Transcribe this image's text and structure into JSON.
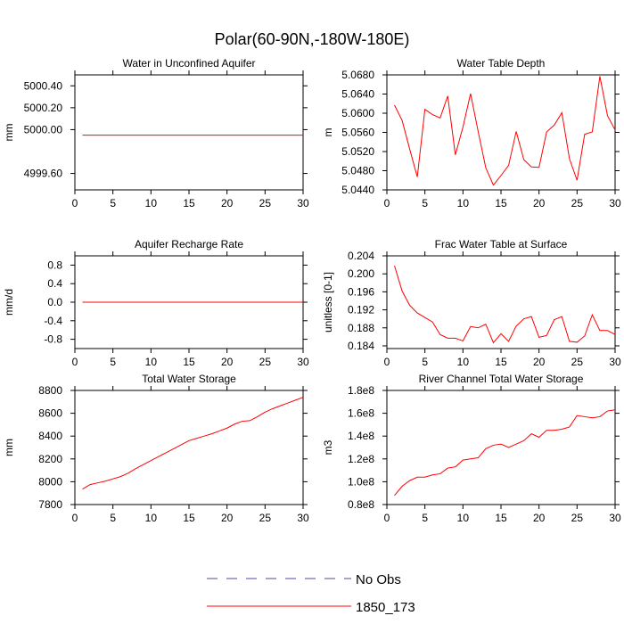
{
  "title": "Polar(60-90N,-180W-180E)",
  "chart_data": [
    {
      "type": "line",
      "title": "Water in Unconfined Aquifer",
      "ylabel": "mm",
      "xlim": [
        0,
        30
      ],
      "ylim": [
        4999.45,
        5000.5
      ],
      "xticks": [
        0,
        5,
        10,
        15,
        20,
        25,
        30
      ],
      "xtick_labels": [
        "0",
        "5",
        "10",
        "15",
        "20",
        "25",
        "30"
      ],
      "yticks": [
        4999.6,
        5000.0,
        5000.2,
        5000.4
      ],
      "ytick_labels": [
        "4999.60",
        "5000.00",
        "5000.20",
        "5000.40"
      ],
      "x": [
        1,
        2,
        3,
        4,
        5,
        6,
        7,
        8,
        9,
        10,
        11,
        12,
        13,
        14,
        15,
        16,
        17,
        18,
        19,
        20,
        21,
        22,
        23,
        24,
        25,
        26,
        27,
        28,
        29,
        30
      ],
      "series": [
        {
          "name": "1850_173",
          "color": "#ff0000",
          "values": [
            4999.95,
            4999.95,
            4999.95,
            4999.95,
            4999.95,
            4999.95,
            4999.95,
            4999.95,
            4999.95,
            4999.95,
            4999.95,
            4999.95,
            4999.95,
            4999.95,
            4999.95,
            4999.95,
            4999.95,
            4999.95,
            4999.95,
            4999.95,
            4999.95,
            4999.95,
            4999.95,
            4999.95,
            4999.95,
            4999.95,
            4999.95,
            4999.95,
            4999.95,
            4999.95
          ]
        }
      ]
    },
    {
      "type": "line",
      "title": "Water Table Depth",
      "ylabel": "m",
      "xlim": [
        0,
        30
      ],
      "ylim": [
        5.044,
        5.068
      ],
      "xticks": [
        0,
        5,
        10,
        15,
        20,
        25,
        30
      ],
      "xtick_labels": [
        "0",
        "5",
        "10",
        "15",
        "20",
        "25",
        "30"
      ],
      "yticks": [
        5.044,
        5.048,
        5.052,
        5.056,
        5.06,
        5.064,
        5.068
      ],
      "ytick_labels": [
        "5.0440",
        "5.0480",
        "5.0520",
        "5.0560",
        "5.0600",
        "5.0640",
        "5.0680"
      ],
      "x": [
        1,
        2,
        3,
        4,
        5,
        6,
        7,
        8,
        9,
        10,
        11,
        12,
        13,
        14,
        15,
        16,
        17,
        18,
        19,
        20,
        21,
        22,
        23,
        24,
        25,
        26,
        27,
        28,
        29,
        30
      ],
      "series": [
        {
          "name": "1850_173",
          "color": "#ff0000",
          "values": [
            5.0617,
            5.0585,
            5.0525,
            5.0467,
            5.0608,
            5.0597,
            5.059,
            5.0636,
            5.0513,
            5.0571,
            5.0641,
            5.0562,
            5.0486,
            5.045,
            5.047,
            5.0491,
            5.0562,
            5.0503,
            5.0488,
            5.0487,
            5.0561,
            5.0575,
            5.0601,
            5.0505,
            5.046,
            5.0556,
            5.0561,
            5.0677,
            5.0595,
            5.0565
          ]
        }
      ]
    },
    {
      "type": "line",
      "title": "Aquifer Recharge Rate",
      "ylabel": "mm/d",
      "xlim": [
        0,
        30
      ],
      "ylim": [
        -1.0,
        1.0
      ],
      "xticks": [
        0,
        5,
        10,
        15,
        20,
        25,
        30
      ],
      "xtick_labels": [
        "0",
        "5",
        "10",
        "15",
        "20",
        "25",
        "30"
      ],
      "yticks": [
        -0.8,
        -0.4,
        0.0,
        0.4,
        0.8
      ],
      "ytick_labels": [
        "-0.8",
        "-0.4",
        "0.0",
        "0.4",
        "0.8"
      ],
      "x": [
        1,
        2,
        3,
        4,
        5,
        6,
        7,
        8,
        9,
        10,
        11,
        12,
        13,
        14,
        15,
        16,
        17,
        18,
        19,
        20,
        21,
        22,
        23,
        24,
        25,
        26,
        27,
        28,
        29,
        30
      ],
      "series": [
        {
          "name": "1850_173",
          "color": "#ff0000",
          "values": [
            0,
            0,
            0,
            0,
            0,
            0,
            0,
            0,
            0,
            0,
            0,
            0,
            0,
            0,
            0,
            0,
            0,
            0,
            0,
            0,
            0,
            0,
            0,
            0,
            0,
            0,
            0,
            0,
            0,
            0
          ]
        }
      ]
    },
    {
      "type": "line",
      "title": "Frac Water Table at Surface",
      "ylabel": "unitless [0-1]",
      "xlim": [
        0,
        30
      ],
      "ylim": [
        0.1834,
        0.204
      ],
      "xticks": [
        0,
        5,
        10,
        15,
        20,
        25,
        30
      ],
      "xtick_labels": [
        "0",
        "5",
        "10",
        "15",
        "20",
        "25",
        "30"
      ],
      "yticks": [
        0.184,
        0.188,
        0.192,
        0.196,
        0.2,
        0.204
      ],
      "ytick_labels": [
        "0.184",
        "0.188",
        "0.192",
        "0.196",
        "0.200",
        "0.204"
      ],
      "x": [
        1,
        2,
        3,
        4,
        5,
        6,
        7,
        8,
        9,
        10,
        11,
        12,
        13,
        14,
        15,
        16,
        17,
        18,
        19,
        20,
        21,
        22,
        23,
        24,
        25,
        26,
        27,
        28,
        29,
        30
      ],
      "series": [
        {
          "name": "1850_173",
          "color": "#ff0000",
          "values": [
            0.2018,
            0.1962,
            0.193,
            0.1913,
            0.1903,
            0.1893,
            0.1865,
            0.1857,
            0.1857,
            0.1851,
            0.1883,
            0.188,
            0.1888,
            0.1847,
            0.1867,
            0.185,
            0.1884,
            0.19,
            0.1905,
            0.1859,
            0.1863,
            0.1898,
            0.1905,
            0.185,
            0.1848,
            0.1862,
            0.1909,
            0.1874,
            0.1874,
            0.1865
          ]
        }
      ]
    },
    {
      "type": "line",
      "title": "Total Water Storage",
      "ylabel": "mm",
      "xlim": [
        0,
        30
      ],
      "ylim": [
        7800,
        8800
      ],
      "xticks": [
        0,
        5,
        10,
        15,
        20,
        25,
        30
      ],
      "xtick_labels": [
        "0",
        "5",
        "10",
        "15",
        "20",
        "25",
        "30"
      ],
      "yticks": [
        7800,
        8000,
        8200,
        8400,
        8600,
        8800
      ],
      "ytick_labels": [
        "7800",
        "8000",
        "8200",
        "8400",
        "8600",
        "8800"
      ],
      "x": [
        1,
        2,
        3,
        4,
        5,
        6,
        7,
        8,
        9,
        10,
        11,
        12,
        13,
        14,
        15,
        16,
        17,
        18,
        19,
        20,
        21,
        22,
        23,
        24,
        25,
        26,
        27,
        28,
        29,
        30
      ],
      "series": [
        {
          "name": "1850_173",
          "color": "#ff0000",
          "values": [
            7935,
            7975,
            7990,
            8005,
            8025,
            8045,
            8075,
            8115,
            8150,
            8185,
            8220,
            8255,
            8290,
            8325,
            8360,
            8380,
            8400,
            8420,
            8445,
            8470,
            8505,
            8530,
            8535,
            8570,
            8610,
            8640,
            8665,
            8690,
            8715,
            8740
          ]
        }
      ]
    },
    {
      "type": "line",
      "title": "River Channel Total Water Storage",
      "ylabel": "m3",
      "xlim": [
        0,
        30
      ],
      "ylim": [
        0.8,
        1.8
      ],
      "yunit": "1e8",
      "xticks": [
        0,
        5,
        10,
        15,
        20,
        25,
        30
      ],
      "xtick_labels": [
        "0",
        "5",
        "10",
        "15",
        "20",
        "25",
        "30"
      ],
      "yticks": [
        0.8,
        1.0,
        1.2,
        1.4,
        1.6,
        1.8
      ],
      "ytick_labels": [
        "0.8e8",
        "1.0e8",
        "1.2e8",
        "1.4e8",
        "1.6e8",
        "1.8e8"
      ],
      "x": [
        1,
        2,
        3,
        4,
        5,
        6,
        7,
        8,
        9,
        10,
        11,
        12,
        13,
        14,
        15,
        16,
        17,
        18,
        19,
        20,
        21,
        22,
        23,
        24,
        25,
        26,
        27,
        28,
        29,
        30
      ],
      "series": [
        {
          "name": "1850_173",
          "color": "#ff0000",
          "values": [
            0.88,
            0.96,
            1.01,
            1.04,
            1.04,
            1.06,
            1.07,
            1.12,
            1.13,
            1.19,
            1.2,
            1.21,
            1.29,
            1.32,
            1.33,
            1.3,
            1.33,
            1.36,
            1.42,
            1.39,
            1.45,
            1.45,
            1.46,
            1.48,
            1.58,
            1.57,
            1.56,
            1.57,
            1.62,
            1.63
          ]
        }
      ]
    }
  ],
  "legend": [
    {
      "label": "No Obs",
      "color": "#4a4aa8",
      "style": "dashed"
    },
    {
      "label": "1850_173",
      "color": "#ff0000",
      "style": "solid"
    }
  ]
}
